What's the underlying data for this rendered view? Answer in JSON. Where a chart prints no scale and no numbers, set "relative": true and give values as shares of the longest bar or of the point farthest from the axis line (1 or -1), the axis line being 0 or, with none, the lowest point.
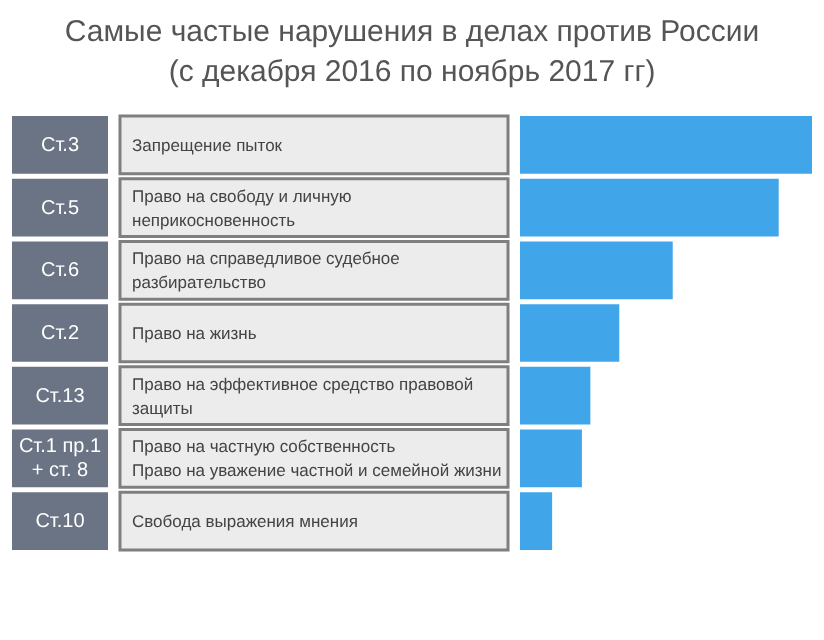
{
  "chart_data": {
    "type": "bar",
    "orientation": "horizontal",
    "relative": true,
    "title": "Самые частые нарушения в делах против России",
    "subtitle": "(с декабря 2016 по ноябрь 2017 гг)",
    "categories": [
      "Ст.3",
      "Ст.5",
      "Ст.6",
      "Ст.2",
      "Ст.13",
      "Ст.1 пр.1\n+ ст. 8",
      "Ст.10"
    ],
    "values": [
      1,
      0.886,
      0.523,
      0.34,
      0.241,
      0.212,
      0.11
    ],
    "color": "#41a5ea",
    "annotations": [
      "Запрещение пыток",
      "Право на свободу и личную\nнеприкосновенность",
      "Право на справедливое судебное\nразбирательство",
      "Право на жизнь",
      "Право на эффективное средство правовой\nзащиты",
      "Право на частную собственность\nПраво на уважение частной и семейной жизни",
      "Свобода выражения мнения"
    ]
  }
}
